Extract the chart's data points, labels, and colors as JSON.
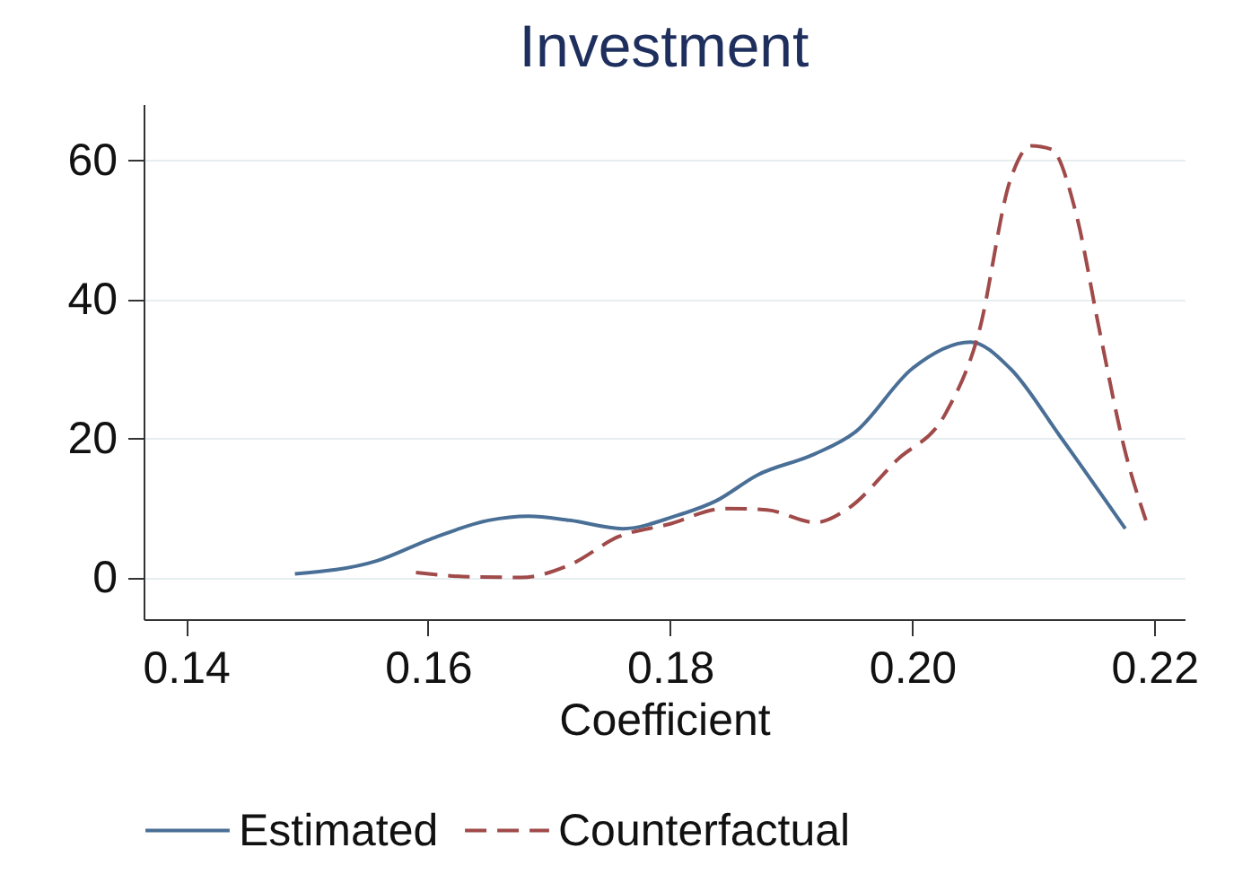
{
  "chart_data": {
    "type": "line",
    "title": "Investment",
    "xlabel": "Coefficient",
    "xlim": [
      0.1365,
      0.2225
    ],
    "xticks": [
      0.14,
      0.16,
      0.18,
      {
        "value": 0.2,
        "label": "0.20"
      },
      0.22
    ],
    "ylim": [
      -6,
      68
    ],
    "yticks": [
      0,
      20,
      40,
      60
    ],
    "grid": "y",
    "legend": "bottom",
    "series": [
      {
        "name": "Estimated",
        "color": "#4a6f96",
        "line_style": "solid",
        "x": [
          0.149,
          0.1558,
          0.1602,
          0.165,
          0.1683,
          0.1717,
          0.1761,
          0.1804,
          0.1838,
          0.1872,
          0.1919,
          0.1953,
          0.2,
          0.2048,
          0.2081,
          0.2122,
          0.2176
        ],
        "values": [
          0.5,
          2.4,
          5.5,
          8.2,
          8.8,
          8.2,
          7,
          8.8,
          11,
          14.7,
          17.7,
          20.9,
          30,
          33.8,
          30,
          20.3,
          7
        ]
      },
      {
        "name": "Counterfactual",
        "color": "#a04a4a",
        "line_style": "dashed",
        "x": [
          0.159,
          0.1634,
          0.1677,
          0.1717,
          0.1758,
          0.1798,
          0.1845,
          0.188,
          0.192,
          0.1947,
          0.1987,
          0.2028,
          0.2055,
          0.2081,
          0.2098,
          0.2115,
          0.2135,
          0.2155,
          0.2176,
          0.2193
        ],
        "values": [
          0.7,
          0.1,
          0,
          1.8,
          5.9,
          7.6,
          9.9,
          9.7,
          7.9,
          9.9,
          16.8,
          23.7,
          35.2,
          57.1,
          62,
          61.5,
          52.5,
          35.2,
          18,
          8.2
        ]
      }
    ]
  }
}
